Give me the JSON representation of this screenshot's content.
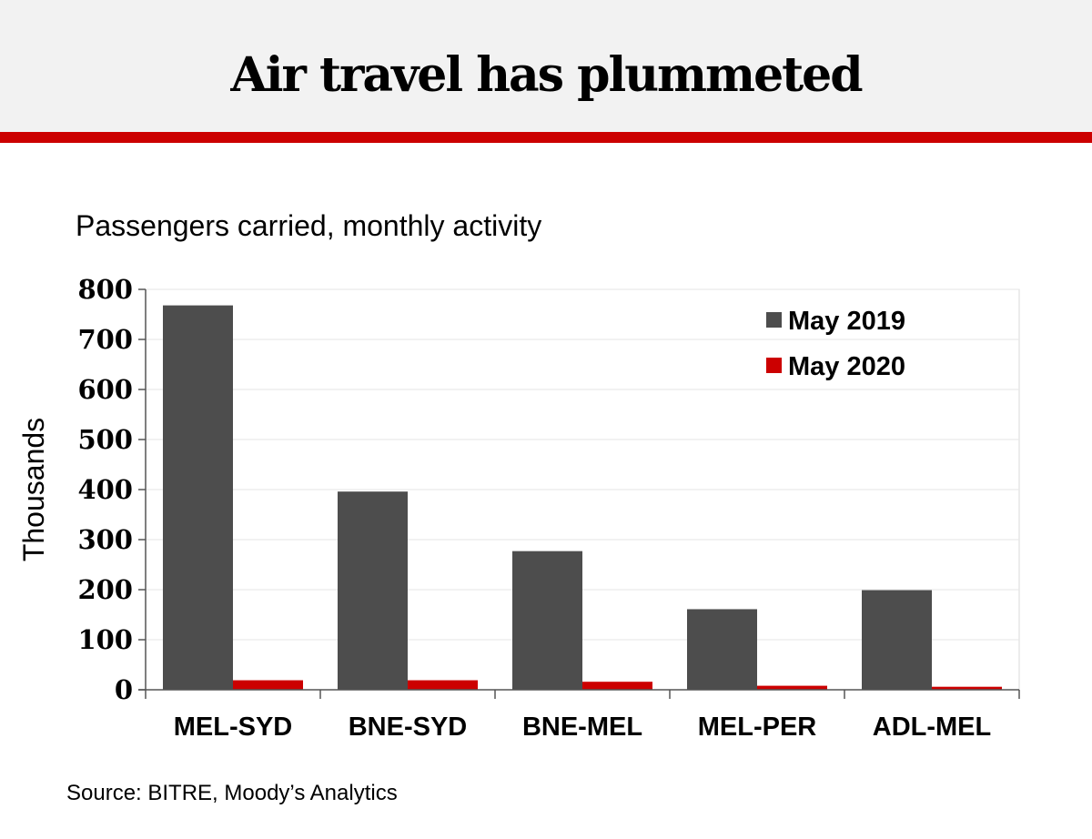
{
  "header": {
    "title": "Air travel has plummeted",
    "rule_color": "#cc0000",
    "background": "#f2f2f2"
  },
  "subtitle": "Passengers carried, monthly activity",
  "source": "Source: BITRE, Moody’s Analytics",
  "chart_data": {
    "type": "bar",
    "categories": [
      "MEL-SYD",
      "BNE-SYD",
      "BNE-MEL",
      "MEL-PER",
      "ADL-MEL"
    ],
    "series": [
      {
        "name": "May 2019",
        "color": "#4d4d4d",
        "values": [
          768,
          396,
          277,
          161,
          199
        ]
      },
      {
        "name": "May 2020",
        "color": "#cc0000",
        "values": [
          19,
          19,
          16,
          8,
          6
        ]
      }
    ],
    "ylabel": "Thousands",
    "xlabel": "",
    "ylim": [
      0,
      800
    ],
    "yticks": [
      0,
      100,
      200,
      300,
      400,
      500,
      600,
      700,
      800
    ],
    "grid": true,
    "legend_position": "top-right"
  }
}
